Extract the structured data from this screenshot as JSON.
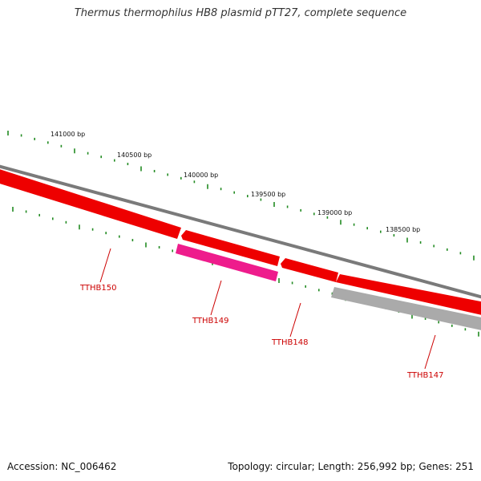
{
  "title": "Thermus thermophilus HB8 plasmid pTT27, complete sequence",
  "colors": {
    "backbone": "#7a7a7a",
    "forward_gene": "#ee0000",
    "pink_gene": "#ee1c8c",
    "gray_gene": "#aaaaaa",
    "tick": "#228b22",
    "gene_label": "#cc0000"
  },
  "scale_labels": [
    "141000 bp",
    "140500 bp",
    "140000 bp",
    "139500 bp",
    "139000 bp",
    "138500 bp"
  ],
  "genes": [
    {
      "name": "TTHB150",
      "color": "forward_gene"
    },
    {
      "name": "TTHB149",
      "color": "pink_gene"
    },
    {
      "name": "TTHB148",
      "color": "forward_gene"
    },
    {
      "name": "TTHB147",
      "color": "gray_gene"
    }
  ],
  "footer": {
    "accession": "Accession: NC_006462",
    "summary": "Topology: circular; Length: 256,992 bp; Genes: 251"
  }
}
